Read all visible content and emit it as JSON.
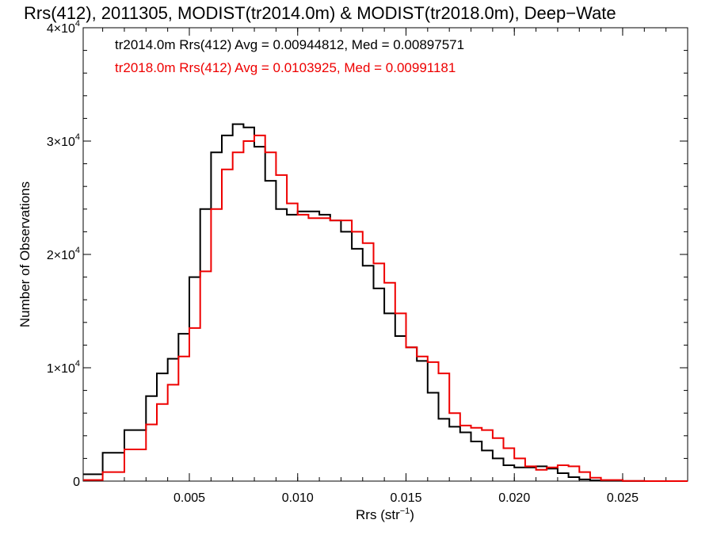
{
  "chart_data": {
    "type": "line",
    "title": "Rrs(412), 2011305, MODIST(tr2014.0m) & MODIST(tr2018.0m), Deep−Wate",
    "xlabel_main": "Rrs (str",
    "xlabel_sup": "−1",
    "xlabel_tail": ")",
    "ylabel": "Number of Observations",
    "xlim": [
      0.0001,
      0.028
    ],
    "ylim": [
      0,
      40000
    ],
    "x_ticks": [
      {
        "value": 0.005,
        "label": "0.005"
      },
      {
        "value": 0.01,
        "label": "0.010"
      },
      {
        "value": 0.015,
        "label": "0.015"
      },
      {
        "value": 0.02,
        "label": "0.020"
      },
      {
        "value": 0.025,
        "label": "0.025"
      }
    ],
    "y_ticks": [
      {
        "value": 0,
        "label": "0",
        "sup": ""
      },
      {
        "value": 10000,
        "label": "1×10",
        "sup": "4"
      },
      {
        "value": 20000,
        "label": "2×10",
        "sup": "4"
      },
      {
        "value": 30000,
        "label": "3×10",
        "sup": "4"
      },
      {
        "value": 40000,
        "label": "4×10",
        "sup": "4"
      }
    ],
    "x_minor_step": 0.001,
    "y_minor_step": 2000,
    "series": [
      {
        "name": "tr2014.0m",
        "color": "#000000",
        "legend": "tr2014.0m Rrs(412) Avg = 0.00944812, Med = 0.00897571",
        "x": [
          0.0001,
          0.001,
          0.002,
          0.003,
          0.0035,
          0.004,
          0.0045,
          0.005,
          0.0055,
          0.006,
          0.0065,
          0.007,
          0.0075,
          0.008,
          0.0085,
          0.009,
          0.0095,
          0.01,
          0.0105,
          0.011,
          0.0115,
          0.012,
          0.0125,
          0.013,
          0.0135,
          0.014,
          0.0145,
          0.015,
          0.0155,
          0.016,
          0.0165,
          0.017,
          0.0175,
          0.018,
          0.0185,
          0.019,
          0.0195,
          0.02,
          0.0205,
          0.021,
          0.0215,
          0.022,
          0.0225,
          0.023,
          0.0235,
          0.024,
          0.025,
          0.026,
          0.028
        ],
        "y": [
          600,
          2500,
          4500,
          7500,
          9500,
          10800,
          13000,
          18000,
          24000,
          29000,
          30500,
          31500,
          31200,
          29500,
          26500,
          24000,
          23500,
          23800,
          23800,
          23500,
          23000,
          22000,
          20500,
          19000,
          17000,
          14800,
          12800,
          11800,
          10600,
          7800,
          5500,
          4800,
          4300,
          3500,
          2700,
          2000,
          1400,
          1200,
          1200,
          1300,
          1100,
          700,
          350,
          150,
          60,
          30,
          10,
          0,
          0
        ]
      },
      {
        "name": "tr2018.0m",
        "color": "#ee0000",
        "legend": "tr2018.0m Rrs(412) Avg = 0.0103925, Med = 0.00991181",
        "x": [
          0.0001,
          0.001,
          0.002,
          0.003,
          0.0035,
          0.004,
          0.0045,
          0.005,
          0.0055,
          0.006,
          0.0065,
          0.007,
          0.0075,
          0.008,
          0.0085,
          0.009,
          0.0095,
          0.01,
          0.0105,
          0.011,
          0.0115,
          0.012,
          0.0125,
          0.013,
          0.0135,
          0.014,
          0.0145,
          0.015,
          0.0155,
          0.016,
          0.0165,
          0.017,
          0.0175,
          0.018,
          0.0185,
          0.019,
          0.0195,
          0.02,
          0.0205,
          0.021,
          0.0215,
          0.022,
          0.0225,
          0.023,
          0.0235,
          0.024,
          0.025,
          0.026,
          0.028
        ],
        "y": [
          100,
          800,
          2800,
          5000,
          6800,
          8500,
          11000,
          13500,
          18500,
          24000,
          27500,
          29000,
          30000,
          30500,
          29000,
          27000,
          24500,
          23500,
          23200,
          23200,
          23000,
          23000,
          22000,
          21000,
          19200,
          17500,
          14800,
          11800,
          11000,
          10500,
          9500,
          6000,
          4900,
          4700,
          4500,
          3800,
          2900,
          2000,
          1300,
          1000,
          1200,
          1400,
          1300,
          800,
          300,
          100,
          20,
          0,
          0
        ]
      }
    ]
  }
}
